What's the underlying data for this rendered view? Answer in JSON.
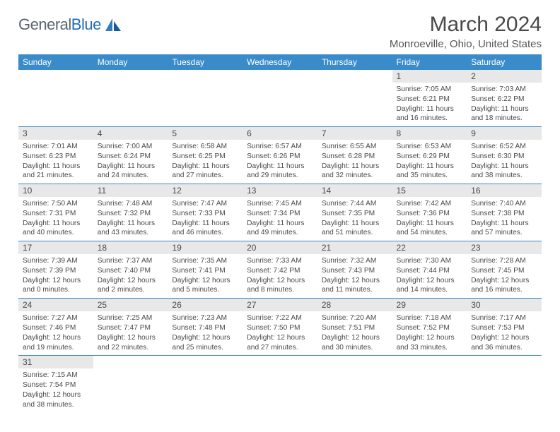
{
  "logo": {
    "text_gray": "General",
    "text_blue": "Blue"
  },
  "title": "March 2024",
  "location": "Monroeville, Ohio, United States",
  "colors": {
    "header_bg": "#3a8bc9",
    "daynum_bg": "#e8e8e8",
    "row_border": "#3a8bc9",
    "text": "#4a4a4a",
    "logo_gray": "#5a6470",
    "logo_blue": "#1f6db5"
  },
  "weekdays": [
    "Sunday",
    "Monday",
    "Tuesday",
    "Wednesday",
    "Thursday",
    "Friday",
    "Saturday"
  ],
  "weeks": [
    [
      null,
      null,
      null,
      null,
      null,
      {
        "n": "1",
        "sr": "Sunrise: 7:05 AM",
        "ss": "Sunset: 6:21 PM",
        "d1": "Daylight: 11 hours",
        "d2": "and 16 minutes."
      },
      {
        "n": "2",
        "sr": "Sunrise: 7:03 AM",
        "ss": "Sunset: 6:22 PM",
        "d1": "Daylight: 11 hours",
        "d2": "and 18 minutes."
      }
    ],
    [
      {
        "n": "3",
        "sr": "Sunrise: 7:01 AM",
        "ss": "Sunset: 6:23 PM",
        "d1": "Daylight: 11 hours",
        "d2": "and 21 minutes."
      },
      {
        "n": "4",
        "sr": "Sunrise: 7:00 AM",
        "ss": "Sunset: 6:24 PM",
        "d1": "Daylight: 11 hours",
        "d2": "and 24 minutes."
      },
      {
        "n": "5",
        "sr": "Sunrise: 6:58 AM",
        "ss": "Sunset: 6:25 PM",
        "d1": "Daylight: 11 hours",
        "d2": "and 27 minutes."
      },
      {
        "n": "6",
        "sr": "Sunrise: 6:57 AM",
        "ss": "Sunset: 6:26 PM",
        "d1": "Daylight: 11 hours",
        "d2": "and 29 minutes."
      },
      {
        "n": "7",
        "sr": "Sunrise: 6:55 AM",
        "ss": "Sunset: 6:28 PM",
        "d1": "Daylight: 11 hours",
        "d2": "and 32 minutes."
      },
      {
        "n": "8",
        "sr": "Sunrise: 6:53 AM",
        "ss": "Sunset: 6:29 PM",
        "d1": "Daylight: 11 hours",
        "d2": "and 35 minutes."
      },
      {
        "n": "9",
        "sr": "Sunrise: 6:52 AM",
        "ss": "Sunset: 6:30 PM",
        "d1": "Daylight: 11 hours",
        "d2": "and 38 minutes."
      }
    ],
    [
      {
        "n": "10",
        "sr": "Sunrise: 7:50 AM",
        "ss": "Sunset: 7:31 PM",
        "d1": "Daylight: 11 hours",
        "d2": "and 40 minutes."
      },
      {
        "n": "11",
        "sr": "Sunrise: 7:48 AM",
        "ss": "Sunset: 7:32 PM",
        "d1": "Daylight: 11 hours",
        "d2": "and 43 minutes."
      },
      {
        "n": "12",
        "sr": "Sunrise: 7:47 AM",
        "ss": "Sunset: 7:33 PM",
        "d1": "Daylight: 11 hours",
        "d2": "and 46 minutes."
      },
      {
        "n": "13",
        "sr": "Sunrise: 7:45 AM",
        "ss": "Sunset: 7:34 PM",
        "d1": "Daylight: 11 hours",
        "d2": "and 49 minutes."
      },
      {
        "n": "14",
        "sr": "Sunrise: 7:44 AM",
        "ss": "Sunset: 7:35 PM",
        "d1": "Daylight: 11 hours",
        "d2": "and 51 minutes."
      },
      {
        "n": "15",
        "sr": "Sunrise: 7:42 AM",
        "ss": "Sunset: 7:36 PM",
        "d1": "Daylight: 11 hours",
        "d2": "and 54 minutes."
      },
      {
        "n": "16",
        "sr": "Sunrise: 7:40 AM",
        "ss": "Sunset: 7:38 PM",
        "d1": "Daylight: 11 hours",
        "d2": "and 57 minutes."
      }
    ],
    [
      {
        "n": "17",
        "sr": "Sunrise: 7:39 AM",
        "ss": "Sunset: 7:39 PM",
        "d1": "Daylight: 12 hours",
        "d2": "and 0 minutes."
      },
      {
        "n": "18",
        "sr": "Sunrise: 7:37 AM",
        "ss": "Sunset: 7:40 PM",
        "d1": "Daylight: 12 hours",
        "d2": "and 2 minutes."
      },
      {
        "n": "19",
        "sr": "Sunrise: 7:35 AM",
        "ss": "Sunset: 7:41 PM",
        "d1": "Daylight: 12 hours",
        "d2": "and 5 minutes."
      },
      {
        "n": "20",
        "sr": "Sunrise: 7:33 AM",
        "ss": "Sunset: 7:42 PM",
        "d1": "Daylight: 12 hours",
        "d2": "and 8 minutes."
      },
      {
        "n": "21",
        "sr": "Sunrise: 7:32 AM",
        "ss": "Sunset: 7:43 PM",
        "d1": "Daylight: 12 hours",
        "d2": "and 11 minutes."
      },
      {
        "n": "22",
        "sr": "Sunrise: 7:30 AM",
        "ss": "Sunset: 7:44 PM",
        "d1": "Daylight: 12 hours",
        "d2": "and 14 minutes."
      },
      {
        "n": "23",
        "sr": "Sunrise: 7:28 AM",
        "ss": "Sunset: 7:45 PM",
        "d1": "Daylight: 12 hours",
        "d2": "and 16 minutes."
      }
    ],
    [
      {
        "n": "24",
        "sr": "Sunrise: 7:27 AM",
        "ss": "Sunset: 7:46 PM",
        "d1": "Daylight: 12 hours",
        "d2": "and 19 minutes."
      },
      {
        "n": "25",
        "sr": "Sunrise: 7:25 AM",
        "ss": "Sunset: 7:47 PM",
        "d1": "Daylight: 12 hours",
        "d2": "and 22 minutes."
      },
      {
        "n": "26",
        "sr": "Sunrise: 7:23 AM",
        "ss": "Sunset: 7:48 PM",
        "d1": "Daylight: 12 hours",
        "d2": "and 25 minutes."
      },
      {
        "n": "27",
        "sr": "Sunrise: 7:22 AM",
        "ss": "Sunset: 7:50 PM",
        "d1": "Daylight: 12 hours",
        "d2": "and 27 minutes."
      },
      {
        "n": "28",
        "sr": "Sunrise: 7:20 AM",
        "ss": "Sunset: 7:51 PM",
        "d1": "Daylight: 12 hours",
        "d2": "and 30 minutes."
      },
      {
        "n": "29",
        "sr": "Sunrise: 7:18 AM",
        "ss": "Sunset: 7:52 PM",
        "d1": "Daylight: 12 hours",
        "d2": "and 33 minutes."
      },
      {
        "n": "30",
        "sr": "Sunrise: 7:17 AM",
        "ss": "Sunset: 7:53 PM",
        "d1": "Daylight: 12 hours",
        "d2": "and 36 minutes."
      }
    ],
    [
      {
        "n": "31",
        "sr": "Sunrise: 7:15 AM",
        "ss": "Sunset: 7:54 PM",
        "d1": "Daylight: 12 hours",
        "d2": "and 38 minutes."
      },
      null,
      null,
      null,
      null,
      null,
      null
    ]
  ]
}
